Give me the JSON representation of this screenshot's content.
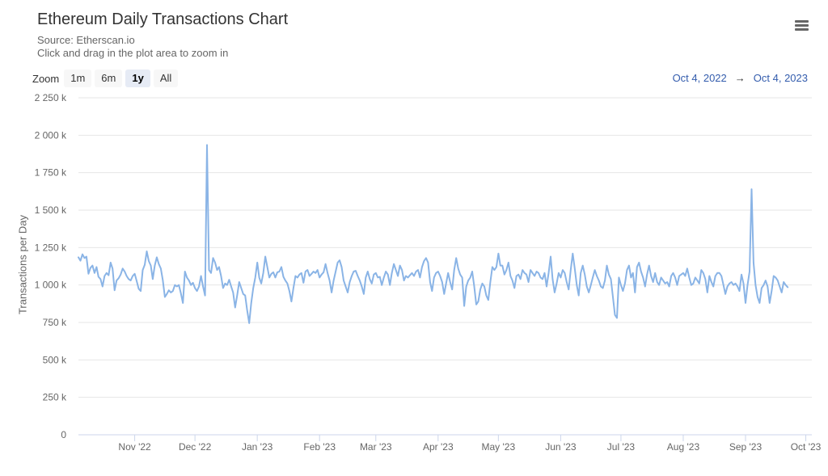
{
  "header": {
    "title": "Ethereum Daily Transactions Chart",
    "source": "Source: Etherscan.io",
    "hint": "Click and drag in the plot area to zoom in"
  },
  "zoom": {
    "label": "Zoom",
    "buttons": [
      "1m",
      "6m",
      "1y",
      "All"
    ],
    "active": "1y"
  },
  "range": {
    "from": "Oct 4, 2022",
    "arrow": "→",
    "to": "Oct 4, 2023"
  },
  "colors": {
    "line": "#8ab4e6",
    "grid": "#e6e6e6",
    "accent": "#335cad"
  },
  "chart_data": {
    "type": "line",
    "title": "Ethereum Daily Transactions Chart",
    "subtitle": "Source: Etherscan.io",
    "ylabel": "Transactions per Day",
    "xlabel": "",
    "ylim": [
      0,
      2250000
    ],
    "yticks": [
      0,
      250000,
      500000,
      750000,
      1000000,
      1250000,
      1500000,
      1750000,
      2000000,
      2250000
    ],
    "ytick_labels": [
      "0",
      "250 k",
      "500 k",
      "750 k",
      "1 000 k",
      "1 250 k",
      "1 500 k",
      "1 750 k",
      "2 000 k",
      "2 250 k"
    ],
    "xlim": [
      "2022-10-04",
      "2023-10-04"
    ],
    "xticks": [
      "2022-11-01",
      "2022-12-01",
      "2023-01-01",
      "2023-02-01",
      "2023-03-01",
      "2023-04-01",
      "2023-05-01",
      "2023-06-01",
      "2023-07-01",
      "2023-08-01",
      "2023-09-01",
      "2023-10-01"
    ],
    "xtick_labels": [
      "Nov '22",
      "Dec '22",
      "Jan '23",
      "Feb '23",
      "Mar '23",
      "Apr '23",
      "May '23",
      "Jun '23",
      "Jul '23",
      "Aug '23",
      "Sep '23",
      "Oct '23"
    ],
    "grid": true,
    "legend": false,
    "series": [
      {
        "start": "2022-10-04",
        "step_days": 1,
        "values": [
          1185000,
          1162000,
          1205000,
          1180000,
          1190000,
          1075000,
          1115000,
          1130000,
          1080000,
          1120000,
          1055000,
          1040000,
          990000,
          1060000,
          1080000,
          1065000,
          1150000,
          1110000,
          965000,
          1030000,
          1045000,
          1070000,
          1110000,
          1090000,
          1060000,
          1040000,
          1030000,
          1060000,
          1075000,
          1025000,
          975000,
          960000,
          1100000,
          1135000,
          1225000,
          1160000,
          1130000,
          1040000,
          1130000,
          1185000,
          1140000,
          1110000,
          1030000,
          920000,
          940000,
          965000,
          950000,
          960000,
          1000000,
          990000,
          1000000,
          945000,
          880000,
          1090000,
          1050000,
          1030000,
          1000000,
          1015000,
          980000,
          960000,
          990000,
          1060000,
          990000,
          930000,
          1935000,
          1100000,
          1080000,
          1180000,
          1150000,
          1100000,
          1120000,
          1060000,
          980000,
          1010000,
          1000000,
          1035000,
          990000,
          950000,
          850000,
          930000,
          1020000,
          980000,
          940000,
          930000,
          830000,
          745000,
          880000,
          980000,
          1050000,
          1150000,
          1050000,
          1010000,
          1080000,
          1190000,
          1120000,
          1050000,
          1075000,
          1085000,
          1050000,
          1085000,
          1090000,
          1120000,
          1055000,
          1030000,
          1010000,
          960000,
          890000,
          980000,
          1060000,
          1050000,
          1070000,
          1080000,
          1015000,
          1090000,
          1100000,
          1060000,
          1075000,
          1090000,
          1080000,
          1100000,
          1050000,
          1070000,
          1085000,
          1140000,
          1080000,
          1030000,
          950000,
          1030000,
          1090000,
          1150000,
          1165000,
          1120000,
          1030000,
          990000,
          950000,
          1020000,
          1060000,
          1090000,
          1095000,
          1060000,
          1030000,
          990000,
          940000,
          1050000,
          1090000,
          1040000,
          1010000,
          1070000,
          1080000,
          1050000,
          1055000,
          1000000,
          1050000,
          1090000,
          1070000,
          1000000,
          1080000,
          1140000,
          1100000,
          1060000,
          1130000,
          1100000,
          1030000,
          1060000,
          1050000,
          1065000,
          1080000,
          1060000,
          1090000,
          1100000,
          1050000,
          1120000,
          1160000,
          1180000,
          1150000,
          1020000,
          960000,
          1050000,
          1080000,
          1090000,
          1060000,
          1020000,
          940000,
          1010000,
          1080000,
          1020000,
          970000,
          1100000,
          1180000,
          1110000,
          1070000,
          1050000,
          860000,
          990000,
          1030000,
          1050000,
          1090000,
          990000,
          870000,
          890000,
          970000,
          1010000,
          990000,
          930000,
          900000,
          1020000,
          1120000,
          1100000,
          1120000,
          1210000,
          1130000,
          1130000,
          1070000,
          1100000,
          1150000,
          1060000,
          1030000,
          980000,
          1060000,
          1070000,
          1040000,
          1100000,
          1080000,
          1070000,
          1020000,
          1100000,
          1080000,
          1060000,
          1090000,
          1080000,
          1050000,
          1040000,
          1080000,
          990000,
          1080000,
          1190000,
          1040000,
          950000,
          1010000,
          1080000,
          1050000,
          1100000,
          1080000,
          1020000,
          970000,
          1100000,
          1210000,
          1110000,
          1000000,
          930000,
          1080000,
          1130000,
          1070000,
          990000,
          950000,
          1000000,
          1050000,
          1100000,
          1060000,
          1030000,
          990000,
          980000,
          1030000,
          1130000,
          1070000,
          1040000,
          920000,
          800000,
          780000,
          1050000,
          1000000,
          960000,
          1010000,
          1100000,
          1130000,
          1050000,
          1080000,
          950000,
          1120000,
          1150000,
          1090000,
          1050000,
          990000,
          1070000,
          1130000,
          1060000,
          1020000,
          1080000,
          1020000,
          1000000,
          1050000,
          1030000,
          1010000,
          1020000,
          990000,
          1060000,
          1080000,
          1050000,
          1000000,
          1060000,
          1070000,
          1080000,
          1060000,
          1110000,
          1050000,
          1000000,
          1010000,
          1050000,
          1030000,
          1010000,
          1100000,
          1080000,
          1040000,
          950000,
          1060000,
          1020000,
          990000,
          1060000,
          1080000,
          1080000,
          1060000,
          1000000,
          940000,
          990000,
          1010000,
          1020000,
          1000000,
          1010000,
          990000,
          960000,
          1070000,
          1010000,
          880000,
          1000000,
          1090000,
          1640000,
          1150000,
          1000000,
          920000,
          880000,
          980000,
          1000000,
          1030000,
          990000,
          880000,
          960000,
          1060000,
          1050000,
          1030000,
          990000,
          950000,
          1020000,
          1000000,
          985000
        ]
      }
    ]
  }
}
